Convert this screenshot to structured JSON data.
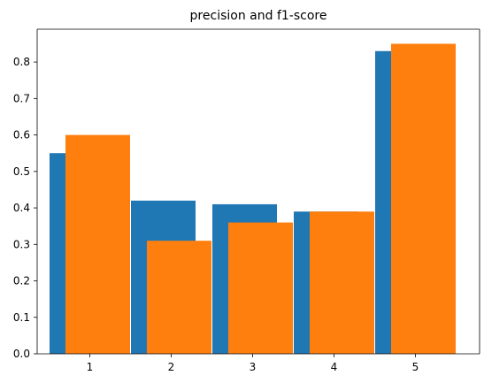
{
  "chart_data": {
    "type": "bar",
    "title": "precision and f1-score",
    "xlabel": "",
    "ylabel": "",
    "categories": [
      "1",
      "2",
      "3",
      "4",
      "5"
    ],
    "series": [
      {
        "values": [
          0.55,
          0.42,
          0.41,
          0.39,
          0.83
        ],
        "color": "#1f77b4"
      },
      {
        "values": [
          0.6,
          0.31,
          0.36,
          0.39,
          0.85
        ],
        "color": "#ff7f0e"
      }
    ],
    "ylim": [
      0,
      0.89
    ],
    "yticks": [
      "0.0",
      "0.1",
      "0.2",
      "0.3",
      "0.4",
      "0.5",
      "0.6",
      "0.7",
      "0.8"
    ],
    "grid": false,
    "legend": "none"
  }
}
